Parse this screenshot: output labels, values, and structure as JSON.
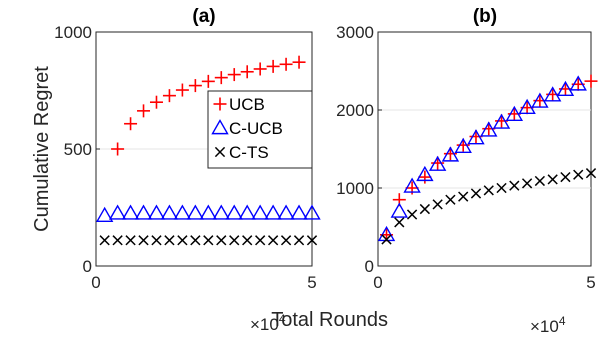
{
  "chart_data": [
    {
      "type": "scatter",
      "title": "(a)",
      "xlabel": "",
      "ylabel": "Cumulative Regret",
      "xlim": [
        0,
        5
      ],
      "ylim": [
        0,
        1000
      ],
      "x_scale_label": "×10",
      "x_scale_exp": "4",
      "xticks": [
        "0",
        "5"
      ],
      "yticks": [
        "0",
        "500",
        "1000"
      ],
      "grid": true,
      "legend_position": "center-right",
      "series": [
        {
          "name": "UCB",
          "marker": "plus",
          "color": "#ff0000",
          "x": [
            0.5,
            0.8,
            1.1,
            1.4,
            1.7,
            2.0,
            2.3,
            2.6,
            2.9,
            3.2,
            3.5,
            3.8,
            4.1,
            4.4,
            4.7
          ],
          "y": [
            500,
            608,
            663,
            700,
            728,
            752,
            771,
            789,
            805,
            818,
            830,
            842,
            853,
            862,
            871
          ]
        },
        {
          "name": "C-UCB",
          "marker": "triangle",
          "color": "#0000ff",
          "x": [
            0.2,
            0.5,
            0.8,
            1.1,
            1.4,
            1.7,
            2.0,
            2.3,
            2.6,
            2.9,
            3.2,
            3.5,
            3.8,
            4.1,
            4.4,
            4.7,
            5.0
          ],
          "y": [
            215,
            225,
            225,
            225,
            225,
            225,
            225,
            225,
            225,
            225,
            225,
            225,
            225,
            225,
            225,
            225,
            225
          ]
        },
        {
          "name": "C-TS",
          "marker": "cross",
          "color": "#000000",
          "x": [
            0.2,
            0.5,
            0.8,
            1.1,
            1.4,
            1.7,
            2.0,
            2.3,
            2.6,
            2.9,
            3.2,
            3.5,
            3.8,
            4.1,
            4.4,
            4.7,
            5.0
          ],
          "y": [
            110,
            110,
            110,
            110,
            110,
            110,
            110,
            110,
            110,
            110,
            110,
            110,
            110,
            110,
            110,
            110,
            110
          ]
        }
      ]
    },
    {
      "type": "scatter",
      "title": "(b)",
      "xlabel": "Total Rounds",
      "ylabel": "",
      "xlim": [
        0,
        5
      ],
      "ylim": [
        0,
        3000
      ],
      "x_scale_label": "×10",
      "x_scale_exp": "4",
      "xticks": [
        "0",
        "5"
      ],
      "yticks": [
        "0",
        "1000",
        "2000",
        "3000"
      ],
      "grid": true,
      "series": [
        {
          "name": "UCB",
          "marker": "plus",
          "color": "#ff0000",
          "x": [
            0.2,
            0.5,
            0.8,
            1.1,
            1.4,
            1.7,
            2.0,
            2.3,
            2.6,
            2.9,
            3.2,
            3.5,
            3.8,
            4.1,
            4.4,
            4.7,
            5.0
          ],
          "y": [
            400,
            850,
            1000,
            1140,
            1320,
            1440,
            1550,
            1660,
            1760,
            1860,
            1950,
            2030,
            2120,
            2200,
            2270,
            2330,
            2370
          ]
        },
        {
          "name": "C-UCB",
          "marker": "triangle",
          "color": "#0000ff",
          "x": [
            0.2,
            0.5,
            0.8,
            1.1,
            1.4,
            1.7,
            2.0,
            2.3,
            2.6,
            2.9,
            3.2,
            3.5,
            3.8,
            4.1,
            4.4,
            4.7
          ],
          "y": [
            400,
            700,
            1020,
            1170,
            1300,
            1420,
            1530,
            1640,
            1740,
            1840,
            1940,
            2030,
            2110,
            2190,
            2260,
            2330
          ]
        },
        {
          "name": "C-TS",
          "marker": "cross",
          "color": "#000000",
          "x": [
            0.2,
            0.5,
            0.8,
            1.1,
            1.4,
            1.7,
            2.0,
            2.3,
            2.6,
            2.9,
            3.2,
            3.5,
            3.8,
            4.1,
            4.4,
            4.7,
            5.0
          ],
          "y": [
            340,
            560,
            660,
            730,
            790,
            850,
            890,
            930,
            970,
            1000,
            1030,
            1060,
            1090,
            1110,
            1140,
            1170,
            1190
          ]
        }
      ]
    }
  ]
}
